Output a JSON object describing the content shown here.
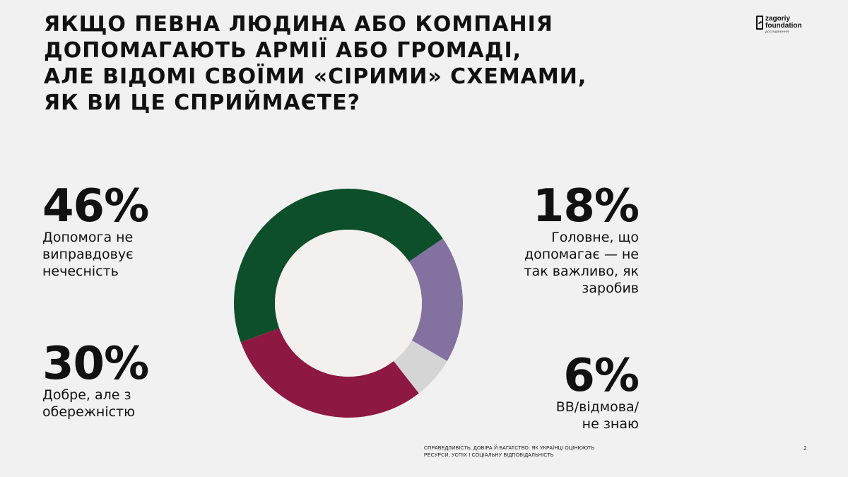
{
  "title_lines": [
    "ЯКЩО ПЕВНА ЛЮДИНА АБО КОМПАНІЯ",
    "ДОПОМАГАЮТЬ АРМІЇ АБО ГРОМАДІ,",
    "АЛЕ ВІДОМІ СВОЇМИ «СІРИМИ» СХЕМАМИ,",
    "ЯК ВИ ЦЕ СПРИЙМАЄТЕ?"
  ],
  "logo": {
    "line1": "zagoriy",
    "line2": "foundation",
    "sub": "ДОСЛІДЖЕННЯ"
  },
  "stats": {
    "s46": {
      "pct": "46%",
      "label_lines": [
        "Допомога не",
        "виправдовує",
        "нечесність"
      ]
    },
    "s30": {
      "pct": "30%",
      "label_lines": [
        "Добре, але з",
        "обережністю"
      ]
    },
    "s18": {
      "pct": "18%",
      "label_lines": [
        "Головне, що",
        "допомагає — не",
        "так важливо, як",
        "заробив"
      ]
    },
    "s6": {
      "pct": "6%",
      "label_lines": [
        "ВВ/відмова/",
        "не знаю"
      ]
    }
  },
  "footer": {
    "line1": "СПРАВЕДЛИВІСТЬ, ДОВІРА Й БАГАТСТВО: ЯК УКРАЇНЦІ ОЦІНЮЮТЬ",
    "line2": "РЕСУРСИ, УСПІХ І СОЦІАЛЬНУ ВІДПОВІДАЛЬНІСТЬ"
  },
  "page_number": "2",
  "chart_data": {
    "type": "pie",
    "donut": true,
    "slices": [
      {
        "label": "Допомога не виправдовує нечесність",
        "value": 46,
        "color": "#0d4f2a"
      },
      {
        "label": "Головне, що допомагає — не так важливо, як заробив",
        "value": 18,
        "color": "#83729f"
      },
      {
        "label": "ВВ/відмова/не знаю",
        "value": 6,
        "color": "#d5d5d5"
      },
      {
        "label": "Добре, але з обережністю",
        "value": 30,
        "color": "#8d1842"
      }
    ],
    "center_color": "#f4f0ed"
  }
}
